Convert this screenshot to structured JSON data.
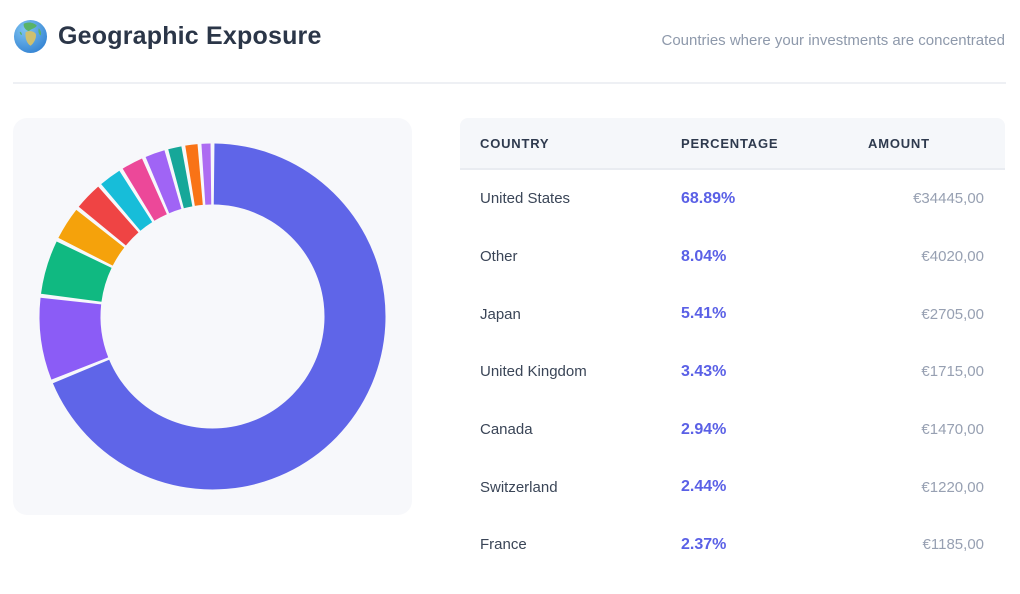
{
  "header": {
    "icon": "globe-icon",
    "title": "Geographic Exposure",
    "subtitle": "Countries where your investments are concentrated"
  },
  "table": {
    "columns": [
      "COUNTRY",
      "PERCENTAGE",
      "AMOUNT"
    ],
    "rows": [
      {
        "country": "United States",
        "percentage": "68.89%",
        "amount": "€34445,00"
      },
      {
        "country": "Other",
        "percentage": "8.04%",
        "amount": "€4020,00"
      },
      {
        "country": "Japan",
        "percentage": "5.41%",
        "amount": "€2705,00"
      },
      {
        "country": "United Kingdom",
        "percentage": "3.43%",
        "amount": "€1715,00"
      },
      {
        "country": "Canada",
        "percentage": "2.94%",
        "amount": "€1470,00"
      },
      {
        "country": "Switzerland",
        "percentage": "2.44%",
        "amount": "€1220,00"
      },
      {
        "country": "France",
        "percentage": "2.37%",
        "amount": "€1185,00"
      }
    ]
  },
  "chart_data": {
    "type": "pie",
    "variant": "donut",
    "title": "Geographic Exposure",
    "start_angle_deg": 0,
    "direction": "clockwise",
    "legend": "none",
    "segments": [
      {
        "label": "United States",
        "value": 68.89,
        "color": "#5f65e8"
      },
      {
        "label": "Other",
        "value": 8.04,
        "color": "#8b5cf6"
      },
      {
        "label": "Japan",
        "value": 5.41,
        "color": "#10b981"
      },
      {
        "label": "United Kingdom",
        "value": 3.43,
        "color": "#f5a20b"
      },
      {
        "label": "Canada",
        "value": 2.94,
        "color": "#ef4444"
      },
      {
        "label": "Switzerland",
        "value": 2.44,
        "color": "#17bdd9"
      },
      {
        "label": "France",
        "value": 2.37,
        "color": "#ec4899"
      },
      {
        "label": "unlabeled-segment-1",
        "value": 2.2,
        "color": "#a064f5"
      },
      {
        "label": "unlabeled-segment-2",
        "value": 1.6,
        "color": "#16a799"
      },
      {
        "label": "unlabeled-segment-3",
        "value": 1.5,
        "color": "#f97316"
      },
      {
        "label": "unlabeled-segment-4",
        "value": 1.2,
        "color": "#ad6cf2"
      }
    ]
  },
  "colors": {
    "accent": "#5a60e6",
    "page_bg": "#ffffff",
    "card_bg": "#f7f8fb",
    "table_header_bg": "#f5f7fa",
    "divider": "#eef0f4",
    "heading_text": "#2b3648",
    "body_text": "#3a4557",
    "muted_text": "#8e99ab"
  }
}
